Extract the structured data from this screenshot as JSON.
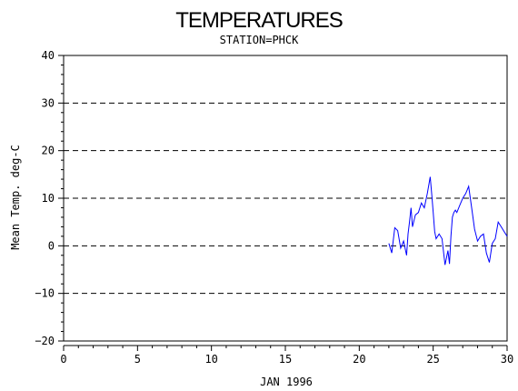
{
  "chart_data": {
    "type": "line",
    "title": "TEMPERATURES",
    "subtitle": "STATION=PHCK",
    "xlabel": "JAN 1996",
    "ylabel": "Mean Temp. deg-C",
    "xlim": [
      0,
      30
    ],
    "ylim": [
      -20,
      40
    ],
    "x_ticks": [
      0,
      5,
      10,
      15,
      20,
      25,
      30
    ],
    "y_ticks": [
      -20,
      -10,
      0,
      10,
      20,
      30,
      40
    ],
    "grid": "horizontal-dashed",
    "line_color": "#0000ff",
    "series": [
      {
        "x": [
          22.0,
          22.2,
          22.4,
          22.6,
          22.8,
          23.0,
          23.2,
          23.3,
          23.4,
          23.5,
          23.6,
          23.8,
          24.0,
          24.2,
          24.4,
          24.6,
          24.8,
          24.9,
          25.0,
          25.1,
          25.2,
          25.4,
          25.6,
          25.8,
          26.0,
          26.1,
          26.2,
          26.3,
          26.4,
          26.5,
          26.6,
          26.8,
          27.0,
          27.2,
          27.4,
          27.6,
          27.8,
          28.0,
          28.2,
          28.4,
          28.6,
          28.8,
          29.0,
          29.2,
          29.4,
          29.6,
          29.8,
          30.0
        ],
        "y": [
          0.5,
          -1.5,
          3.8,
          3.2,
          -0.5,
          1.0,
          -2.0,
          2.5,
          5.0,
          8.0,
          4.0,
          6.5,
          7.0,
          9.0,
          8.0,
          11.0,
          14.5,
          11.0,
          7.0,
          3.0,
          1.5,
          2.5,
          1.5,
          -4.0,
          -1.0,
          -3.8,
          2.0,
          6.0,
          7.0,
          7.5,
          7.0,
          8.5,
          10.0,
          11.0,
          12.5,
          8.0,
          3.5,
          1.0,
          2.0,
          2.5,
          -1.5,
          -3.5,
          0.5,
          1.5,
          5.0,
          4.0,
          3.0,
          2.0
        ]
      }
    ]
  }
}
